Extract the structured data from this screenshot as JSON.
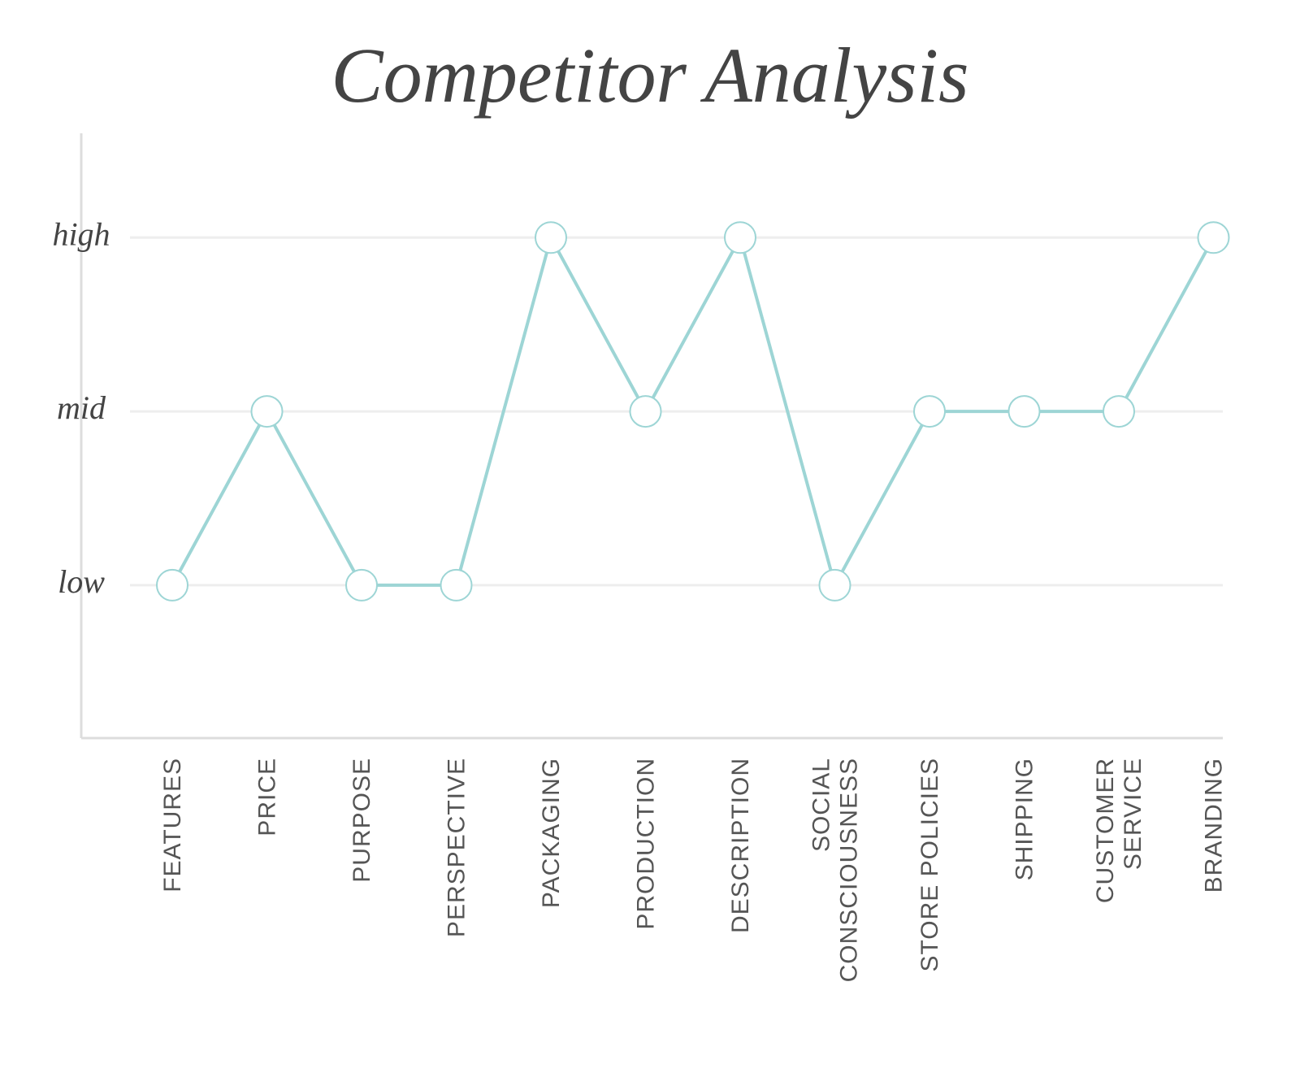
{
  "chart_data": {
    "type": "line",
    "title": "Competitor Analysis",
    "categories": [
      "FEATURES",
      "PRICE",
      "PURPOSE",
      "PERSPECTIVE",
      "PACKAGING",
      "PRODUCTION",
      "DESCRIPTION",
      "SOCIAL CONSCIOUSNESS",
      "STORE POLICIES",
      "SHIPPING",
      "CUSTOMER SERVICE",
      "BRANDING"
    ],
    "values": [
      1,
      2,
      1,
      1,
      3,
      2,
      3,
      1,
      2,
      2,
      2,
      3
    ],
    "color": "#9dd5d5",
    "ylim": [
      0.12,
      3.6
    ],
    "yticks": [
      {
        "value": 1,
        "label": "low"
      },
      {
        "value": 2,
        "label": "mid"
      },
      {
        "value": 3,
        "label": "high"
      }
    ],
    "grid": true
  }
}
